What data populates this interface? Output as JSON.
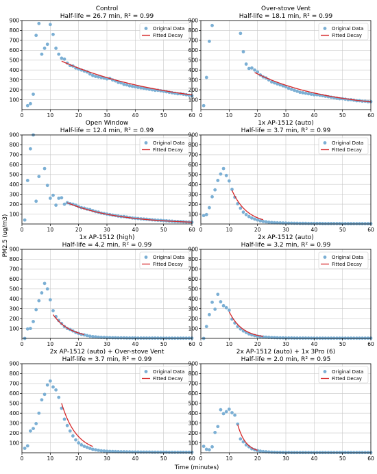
{
  "figure": {
    "xlabel": "Time (minutes)",
    "ylabel": "PM2.5 (ug/m3)"
  },
  "legend": {
    "points": "Original Data",
    "fit": "Fitted Decay"
  },
  "colors": {
    "points": "#7bafd4",
    "fit": "#d62728",
    "grid": "#c8c8c8"
  },
  "chart_data": [
    {
      "type": "scatter",
      "title": "Control",
      "subtitle": "Half-life = 26.7 min, R² = 0.99",
      "xlim": [
        0,
        60
      ],
      "ylim": [
        0,
        900
      ],
      "grid": true,
      "legend_position": "top-right",
      "x": [
        2,
        3,
        4,
        5,
        6,
        7,
        8,
        9,
        10,
        11,
        12,
        13,
        14,
        15,
        16,
        17,
        18,
        19,
        20,
        21,
        22,
        23,
        24,
        25,
        26,
        27,
        28,
        29,
        30,
        31,
        32,
        33,
        34,
        35,
        36,
        37,
        38,
        39,
        40,
        41,
        42,
        43,
        44,
        45,
        46,
        47,
        48,
        49,
        50,
        51,
        52,
        53,
        54,
        55,
        56,
        57,
        58,
        59,
        60
      ],
      "y": [
        40,
        60,
        155,
        750,
        870,
        560,
        620,
        660,
        860,
        760,
        620,
        560,
        520,
        510,
        470,
        445,
        440,
        420,
        410,
        400,
        390,
        380,
        360,
        345,
        335,
        330,
        325,
        320,
        310,
        315,
        300,
        290,
        275,
        270,
        255,
        250,
        240,
        235,
        230,
        225,
        220,
        215,
        210,
        205,
        200,
        195,
        195,
        190,
        185,
        180,
        175,
        170,
        165,
        160,
        160,
        155,
        150,
        145,
        140
      ],
      "fit": {
        "x": [
          14,
          60
        ],
        "y0": 490,
        "half_life": 26.7
      }
    },
    {
      "type": "scatter",
      "title": "Over-stove Vent",
      "subtitle": "Half-life = 18.1 min, R² = 0.99",
      "xlim": [
        0,
        60
      ],
      "ylim": [
        0,
        900
      ],
      "grid": true,
      "legend_position": "top-right",
      "x": [
        1,
        2,
        3,
        4,
        14,
        15,
        16,
        17,
        18,
        19,
        20,
        21,
        22,
        23,
        24,
        25,
        26,
        27,
        28,
        29,
        30,
        31,
        32,
        33,
        34,
        35,
        36,
        37,
        38,
        39,
        40,
        41,
        42,
        43,
        44,
        45,
        46,
        47,
        48,
        49,
        50,
        51,
        52,
        53,
        54,
        55,
        56,
        57,
        58,
        59,
        60
      ],
      "y": [
        40,
        325,
        690,
        850,
        770,
        585,
        460,
        415,
        420,
        400,
        380,
        350,
        330,
        320,
        300,
        280,
        270,
        260,
        250,
        240,
        230,
        215,
        205,
        195,
        185,
        175,
        170,
        165,
        160,
        155,
        150,
        150,
        145,
        140,
        135,
        130,
        125,
        120,
        115,
        110,
        110,
        105,
        100,
        100,
        95,
        90,
        90,
        85,
        85,
        80,
        80
      ],
      "fit": {
        "x": [
          19,
          60
        ],
        "y0": 375,
        "half_life": 18.1
      }
    },
    {
      "type": "scatter",
      "title": "Open Window",
      "subtitle": "Half-life = 12.4 min, R² = 0.99",
      "xlim": [
        0,
        60
      ],
      "ylim": [
        0,
        900
      ],
      "grid": true,
      "legend_position": "top-right",
      "x": [
        1,
        2,
        3,
        4,
        5,
        6,
        8,
        9,
        10,
        11,
        12,
        13,
        14,
        15,
        16,
        17,
        18,
        19,
        20,
        21,
        22,
        23,
        24,
        25,
        26,
        27,
        28,
        29,
        30,
        31,
        32,
        33,
        34,
        35,
        36,
        37,
        38,
        39,
        40,
        41,
        42,
        43,
        44,
        45,
        46,
        47,
        48,
        49,
        50,
        51,
        52,
        53,
        54,
        55,
        56,
        57,
        58,
        59,
        60
      ],
      "y": [
        40,
        440,
        760,
        900,
        230,
        480,
        560,
        390,
        260,
        290,
        190,
        260,
        265,
        200,
        215,
        205,
        200,
        190,
        175,
        165,
        160,
        150,
        145,
        135,
        125,
        120,
        110,
        105,
        100,
        95,
        90,
        85,
        80,
        75,
        75,
        70,
        65,
        60,
        58,
        55,
        52,
        50,
        48,
        45,
        42,
        40,
        38,
        36,
        34,
        32,
        30,
        28,
        26,
        25,
        24,
        22,
        20,
        20,
        18
      ],
      "fit": {
        "x": [
          16,
          60
        ],
        "y0": 215,
        "half_life": 12.4
      }
    },
    {
      "type": "scatter",
      "title": "1x AP-1512 (auto)",
      "subtitle": "Half-life = 3.7 min, R² = 0.99",
      "xlim": [
        0,
        60
      ],
      "ylim": [
        0,
        900
      ],
      "grid": true,
      "legend_position": "top-right",
      "x": [
        1,
        2,
        3,
        4,
        5,
        6,
        7,
        8,
        9,
        10,
        11,
        12,
        13,
        14,
        15,
        16,
        17,
        18,
        19,
        20,
        21,
        22,
        23,
        24,
        25,
        26,
        27,
        28,
        29,
        30,
        31,
        32,
        33,
        34,
        35,
        36,
        37,
        38,
        39,
        40,
        41,
        42,
        43,
        44,
        45,
        46,
        47,
        48,
        49,
        50,
        51,
        52,
        53,
        54,
        55,
        56,
        57,
        58,
        59,
        60
      ],
      "y": [
        85,
        95,
        165,
        275,
        345,
        440,
        505,
        560,
        490,
        435,
        350,
        270,
        205,
        160,
        120,
        95,
        75,
        60,
        50,
        40,
        32,
        26,
        22,
        18,
        15,
        13,
        12,
        11,
        10,
        9,
        8,
        8,
        7,
        7,
        6,
        6,
        6,
        5,
        5,
        5,
        5,
        5,
        4,
        4,
        4,
        4,
        4,
        4,
        4,
        3,
        3,
        3,
        3,
        3,
        3,
        3,
        3,
        3,
        3,
        3
      ],
      "fit": {
        "x": [
          11,
          22
        ],
        "y0": 340,
        "half_life": 3.7
      }
    },
    {
      "type": "scatter",
      "title": "1x AP-1512 (high)",
      "subtitle": "Half-life = 4.2 min, R² = 0.99",
      "xlim": [
        0,
        60
      ],
      "ylim": [
        0,
        900
      ],
      "grid": true,
      "legend_position": "top-right",
      "x": [
        1,
        2,
        3,
        4,
        5,
        6,
        7,
        8,
        9,
        10,
        11,
        12,
        13,
        14,
        15,
        16,
        17,
        18,
        19,
        20,
        21,
        22,
        23,
        24,
        25,
        26,
        27,
        28,
        29,
        30,
        31,
        32,
        33,
        34,
        35,
        36,
        37,
        38,
        39,
        40,
        41,
        42,
        43,
        44,
        45,
        46,
        47,
        48,
        49,
        50,
        51,
        52,
        53,
        54,
        55,
        56,
        57,
        58,
        59,
        60
      ],
      "y": [
        0,
        95,
        100,
        170,
        290,
        380,
        460,
        555,
        500,
        390,
        280,
        220,
        180,
        150,
        120,
        100,
        90,
        75,
        60,
        50,
        40,
        35,
        28,
        22,
        18,
        15,
        12,
        10,
        9,
        8,
        7,
        6,
        6,
        5,
        5,
        5,
        4,
        4,
        4,
        4,
        3,
        3,
        3,
        3,
        3,
        3,
        3,
        3,
        2,
        2,
        2,
        2,
        2,
        2,
        2,
        2,
        2,
        2,
        2,
        2
      ],
      "fit": {
        "x": [
          11,
          22
        ],
        "y0": 240,
        "half_life": 4.2
      }
    },
    {
      "type": "scatter",
      "title": "2x AP-1512 (auto)",
      "subtitle": "Half-life = 3.2 min, R² = 0.99",
      "xlim": [
        0,
        60
      ],
      "ylim": [
        0,
        900
      ],
      "grid": true,
      "legend_position": "top-right",
      "x": [
        1,
        2,
        3,
        4,
        5,
        6,
        7,
        8,
        9,
        10,
        11,
        12,
        13,
        14,
        15,
        16,
        17,
        18,
        19,
        20,
        21,
        22,
        23,
        24,
        25,
        26,
        27,
        28,
        29,
        30,
        31,
        32,
        33,
        34,
        35,
        36,
        37,
        38,
        39,
        40,
        41,
        42,
        43,
        44,
        45,
        46,
        47,
        48,
        49,
        50,
        51,
        52,
        53,
        54,
        55,
        56,
        57,
        58,
        59,
        60
      ],
      "y": [
        0,
        120,
        240,
        365,
        295,
        445,
        370,
        330,
        310,
        285,
        195,
        155,
        120,
        95,
        75,
        60,
        45,
        35,
        28,
        22,
        18,
        14,
        12,
        10,
        8,
        7,
        6,
        5,
        5,
        4,
        4,
        4,
        3,
        3,
        3,
        3,
        3,
        3,
        2,
        2,
        2,
        2,
        2,
        2,
        2,
        2,
        2,
        2,
        2,
        2,
        2,
        2,
        2,
        2,
        2,
        2,
        2,
        2,
        2,
        2
      ],
      "fit": {
        "x": [
          10,
          22
        ],
        "y0": 270,
        "half_life": 3.2
      }
    },
    {
      "type": "scatter",
      "title": "2x AP-1512 (auto) + Over-stove Vent",
      "subtitle": "Half-life = 3.7 min, R² = 0.99",
      "xlim": [
        0,
        60
      ],
      "ylim": [
        0,
        900
      ],
      "grid": true,
      "legend_position": "top-right",
      "x": [
        1,
        2,
        3,
        4,
        5,
        6,
        7,
        8,
        9,
        10,
        11,
        12,
        13,
        14,
        15,
        16,
        17,
        18,
        19,
        20,
        21,
        22,
        23,
        24,
        25,
        26,
        27,
        28,
        29,
        30,
        31,
        32,
        33,
        34,
        35,
        36,
        37,
        38,
        39,
        40,
        41,
        42,
        43,
        44,
        45,
        46,
        47,
        48,
        49,
        50,
        51,
        52,
        53,
        54,
        55,
        56,
        57,
        58,
        59,
        60
      ],
      "y": [
        45,
        70,
        220,
        245,
        295,
        400,
        535,
        590,
        685,
        725,
        665,
        635,
        560,
        450,
        340,
        275,
        220,
        170,
        130,
        100,
        80,
        65,
        55,
        45,
        35,
        30,
        25,
        20,
        18,
        15,
        14,
        13,
        12,
        11,
        10,
        10,
        9,
        9,
        8,
        8,
        8,
        7,
        7,
        7,
        7,
        6,
        6,
        6,
        6,
        6,
        6,
        5,
        5,
        5,
        5,
        5,
        5,
        5,
        5,
        5
      ],
      "fit": {
        "x": [
          14,
          25
        ],
        "y0": 500,
        "half_life": 3.7
      }
    },
    {
      "type": "scatter",
      "title": "2x AP-1512 (auto) + 1x 3Pro (6)",
      "subtitle": "Half-life = 2.0 min, R² = 0.95",
      "xlim": [
        0,
        60
      ],
      "ylim": [
        0,
        900
      ],
      "grid": true,
      "legend_position": "top-right",
      "x": [
        1,
        2,
        3,
        4,
        5,
        6,
        7,
        8,
        9,
        10,
        11,
        12,
        13,
        14,
        15,
        16,
        17,
        18,
        19,
        20,
        21,
        22,
        23,
        24,
        25,
        26,
        27,
        28,
        29,
        30,
        31,
        32,
        33,
        34,
        35,
        36,
        37,
        38,
        39,
        40,
        41,
        42,
        43,
        44,
        45,
        46,
        47,
        48,
        49,
        50,
        51,
        52,
        53,
        54,
        55,
        56,
        57,
        58,
        59,
        60
      ],
      "y": [
        65,
        35,
        30,
        60,
        205,
        265,
        435,
        395,
        415,
        440,
        405,
        380,
        290,
        140,
        110,
        80,
        60,
        40,
        30,
        22,
        16,
        12,
        10,
        8,
        6,
        5,
        4,
        4,
        3,
        3,
        3,
        2,
        2,
        2,
        2,
        2,
        2,
        2,
        2,
        2,
        2,
        2,
        2,
        2,
        2,
        2,
        2,
        2,
        2,
        2,
        2,
        2,
        2,
        2,
        2,
        2,
        2,
        2,
        2,
        2
      ],
      "fit": {
        "x": [
          13,
          20
        ],
        "y0": 285,
        "half_life": 2.0
      }
    }
  ]
}
